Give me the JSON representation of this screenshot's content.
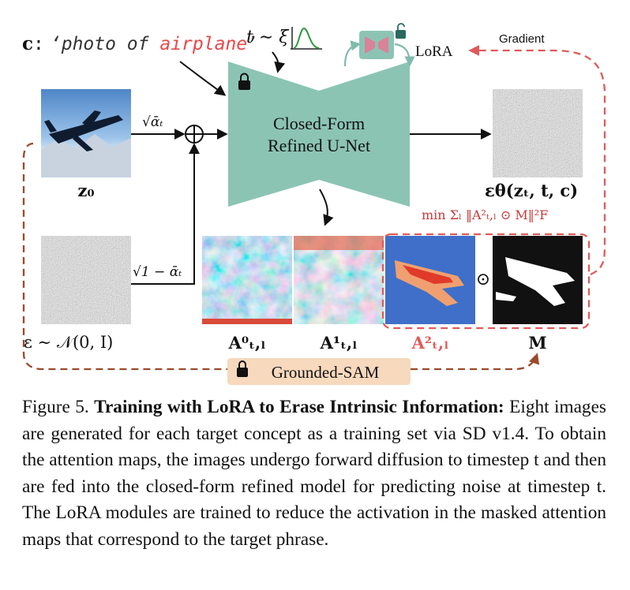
{
  "prompt": {
    "prefix": "c",
    "colon": ":",
    "quote_open": "‘photo of ",
    "concept": "airplane",
    "quote_close": "’"
  },
  "timestep_label": "t ∼ ξ",
  "lora_label": "LoRA",
  "gradient_label": "Gradient",
  "unet_label_line1": "Closed-Form",
  "unet_label_line2": "Refined U-Net",
  "z0_coef": "√ᾱₜ",
  "eps_coef": "√1 − ᾱₜ",
  "z0_label": "z₀",
  "eps_label": "ε ∼ 𝒩(0, I)",
  "output_label": "εθ(zₜ, t, c)",
  "loss_label": "min Σₗ ‖A²ₜ,ₗ ⊙ M‖²F",
  "odot": "⊙",
  "attn_labels": [
    "A⁰ₜ,ₗ",
    "A¹ₜ,ₗ",
    "A²ₜ,ₗ"
  ],
  "mask_label": "M",
  "sam_label": "Grounded-SAM",
  "caption": {
    "figure_label": "Figure 5.",
    "title": "Training with LoRA to Erase Intrinsic Information:",
    "body": "Eight images are generated for each target concept as a training set via SD v1.4. To obtain the attention maps, the images undergo forward diffusion to timestep t and then are fed into the closed-form refined model for predicting noise at timestep t. The LoRA modules are trained to reduce the activation in the masked attention maps that correspond to the target phrase."
  },
  "colors": {
    "unet_teal": "#8cc4b4",
    "lora_pink": "#d9829a",
    "concept_red": "#e84848",
    "dashed_brown": "#9a4a2a",
    "dashed_red": "#e05a5a",
    "sam_peach": "#f7d9bd",
    "loss_red": "#c23b3b"
  }
}
